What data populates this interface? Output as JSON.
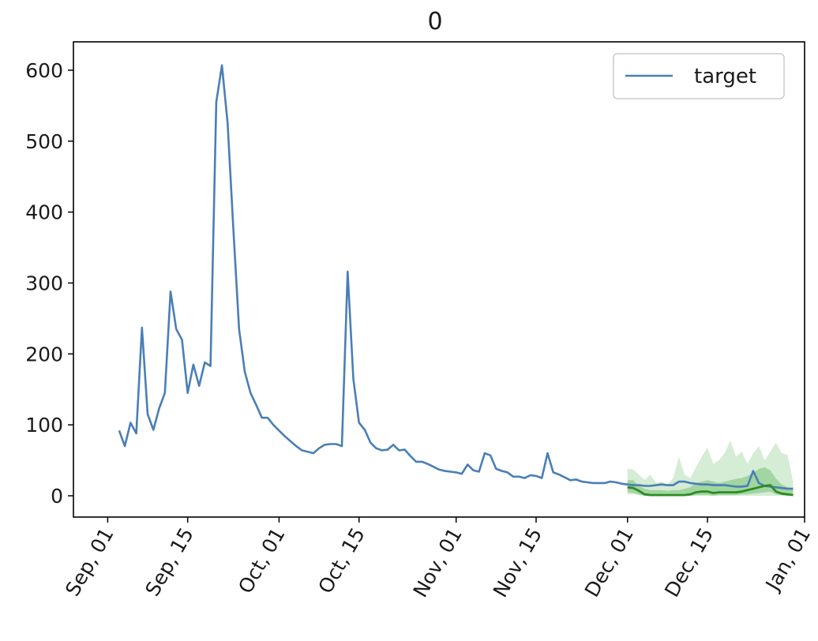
{
  "chart_data": {
    "type": "line",
    "title": "0",
    "xlabel": "",
    "ylabel": "",
    "ylim": [
      -30,
      640
    ],
    "yticks": [
      0,
      100,
      200,
      300,
      400,
      500,
      600
    ],
    "xlim": [
      "2021-08-26",
      "2022-01-01"
    ],
    "xticks": [
      {
        "date": "2021-09-01",
        "label": "Sep, 01"
      },
      {
        "date": "2021-09-15",
        "label": "Sep, 15"
      },
      {
        "date": "2021-10-01",
        "label": "Oct, 01"
      },
      {
        "date": "2021-10-15",
        "label": "Oct, 15"
      },
      {
        "date": "2021-11-01",
        "label": "Nov, 01"
      },
      {
        "date": "2021-11-15",
        "label": "Nov, 15"
      },
      {
        "date": "2021-12-01",
        "label": "Dec, 01"
      },
      {
        "date": "2021-12-15",
        "label": "Dec, 15"
      },
      {
        "date": "2022-01-01",
        "label": "Jan, 01"
      }
    ],
    "grid": false,
    "legend_position": "top-right",
    "series": [
      {
        "name": "target",
        "color": "#4a7fb5",
        "points": [
          [
            "2021-09-03",
            92
          ],
          [
            "2021-09-04",
            70
          ],
          [
            "2021-09-05",
            103
          ],
          [
            "2021-09-06",
            88
          ],
          [
            "2021-09-07",
            237
          ],
          [
            "2021-09-08",
            115
          ],
          [
            "2021-09-09",
            93
          ],
          [
            "2021-09-10",
            123
          ],
          [
            "2021-09-11",
            145
          ],
          [
            "2021-09-12",
            288
          ],
          [
            "2021-09-13",
            235
          ],
          [
            "2021-09-14",
            220
          ],
          [
            "2021-09-15",
            145
          ],
          [
            "2021-09-16",
            185
          ],
          [
            "2021-09-17",
            155
          ],
          [
            "2021-09-18",
            188
          ],
          [
            "2021-09-19",
            183
          ],
          [
            "2021-09-20",
            555
          ],
          [
            "2021-09-21",
            607
          ],
          [
            "2021-09-22",
            525
          ],
          [
            "2021-09-23",
            375
          ],
          [
            "2021-09-24",
            235
          ],
          [
            "2021-09-25",
            175
          ],
          [
            "2021-09-26",
            145
          ],
          [
            "2021-09-27",
            128
          ],
          [
            "2021-09-28",
            110
          ],
          [
            "2021-09-29",
            110
          ],
          [
            "2021-09-30",
            100
          ],
          [
            "2021-10-01",
            92
          ],
          [
            "2021-10-02",
            84
          ],
          [
            "2021-10-03",
            77
          ],
          [
            "2021-10-04",
            70
          ],
          [
            "2021-10-05",
            64
          ],
          [
            "2021-10-06",
            62
          ],
          [
            "2021-10-07",
            60
          ],
          [
            "2021-10-08",
            67
          ],
          [
            "2021-10-09",
            72
          ],
          [
            "2021-10-10",
            73
          ],
          [
            "2021-10-11",
            73
          ],
          [
            "2021-10-12",
            70
          ],
          [
            "2021-10-13",
            316
          ],
          [
            "2021-10-14",
            165
          ],
          [
            "2021-10-15",
            103
          ],
          [
            "2021-10-16",
            93
          ],
          [
            "2021-10-17",
            75
          ],
          [
            "2021-10-18",
            67
          ],
          [
            "2021-10-19",
            64
          ],
          [
            "2021-10-20",
            65
          ],
          [
            "2021-10-21",
            72
          ],
          [
            "2021-10-22",
            64
          ],
          [
            "2021-10-23",
            65
          ],
          [
            "2021-10-24",
            56
          ],
          [
            "2021-10-25",
            48
          ],
          [
            "2021-10-26",
            48
          ],
          [
            "2021-10-27",
            45
          ],
          [
            "2021-10-28",
            41
          ],
          [
            "2021-10-29",
            37
          ],
          [
            "2021-10-30",
            35
          ],
          [
            "2021-10-31",
            34
          ],
          [
            "2021-11-01",
            33
          ],
          [
            "2021-11-02",
            31
          ],
          [
            "2021-11-03",
            44
          ],
          [
            "2021-11-04",
            36
          ],
          [
            "2021-11-05",
            34
          ],
          [
            "2021-11-06",
            60
          ],
          [
            "2021-11-07",
            57
          ],
          [
            "2021-11-08",
            38
          ],
          [
            "2021-11-09",
            35
          ],
          [
            "2021-11-10",
            33
          ],
          [
            "2021-11-11",
            27
          ],
          [
            "2021-11-12",
            27
          ],
          [
            "2021-11-13",
            25
          ],
          [
            "2021-11-14",
            29
          ],
          [
            "2021-11-15",
            28
          ],
          [
            "2021-11-16",
            25
          ],
          [
            "2021-11-17",
            60
          ],
          [
            "2021-11-18",
            33
          ],
          [
            "2021-11-19",
            30
          ],
          [
            "2021-11-20",
            26
          ],
          [
            "2021-11-21",
            22
          ],
          [
            "2021-11-22",
            23
          ],
          [
            "2021-11-23",
            20
          ],
          [
            "2021-11-24",
            19
          ],
          [
            "2021-11-25",
            18
          ],
          [
            "2021-11-26",
            18
          ],
          [
            "2021-11-27",
            18
          ],
          [
            "2021-11-28",
            20
          ],
          [
            "2021-11-29",
            19
          ],
          [
            "2021-11-30",
            17
          ],
          [
            "2021-12-01",
            16
          ],
          [
            "2021-12-02",
            15
          ],
          [
            "2021-12-03",
            15
          ],
          [
            "2021-12-04",
            14
          ],
          [
            "2021-12-05",
            14
          ],
          [
            "2021-12-06",
            15
          ],
          [
            "2021-12-07",
            16
          ],
          [
            "2021-12-08",
            15
          ],
          [
            "2021-12-09",
            15
          ],
          [
            "2021-12-10",
            20
          ],
          [
            "2021-12-11",
            20
          ],
          [
            "2021-12-12",
            18
          ],
          [
            "2021-12-13",
            17
          ],
          [
            "2021-12-14",
            16
          ],
          [
            "2021-12-15",
            16
          ],
          [
            "2021-12-16",
            15
          ],
          [
            "2021-12-17",
            15
          ],
          [
            "2021-12-18",
            15
          ],
          [
            "2021-12-19",
            14
          ],
          [
            "2021-12-20",
            13
          ],
          [
            "2021-12-21",
            13
          ],
          [
            "2021-12-22",
            14
          ],
          [
            "2021-12-23",
            35
          ],
          [
            "2021-12-24",
            18
          ],
          [
            "2021-12-25",
            14
          ],
          [
            "2021-12-26",
            13
          ],
          [
            "2021-12-27",
            12
          ],
          [
            "2021-12-28",
            11
          ],
          [
            "2021-12-29",
            10
          ],
          [
            "2021-12-30",
            10
          ]
        ]
      }
    ],
    "forecast": {
      "color": "#2e8b22",
      "band_color": "#2ca02c",
      "x": [
        "2021-12-01",
        "2021-12-02",
        "2021-12-03",
        "2021-12-04",
        "2021-12-05",
        "2021-12-06",
        "2021-12-07",
        "2021-12-08",
        "2021-12-09",
        "2021-12-10",
        "2021-12-11",
        "2021-12-12",
        "2021-12-13",
        "2021-12-14",
        "2021-12-15",
        "2021-12-16",
        "2021-12-17",
        "2021-12-18",
        "2021-12-19",
        "2021-12-20",
        "2021-12-21",
        "2021-12-22",
        "2021-12-23",
        "2021-12-24",
        "2021-12-25",
        "2021-12-26",
        "2021-12-27",
        "2021-12-28",
        "2021-12-29",
        "2021-12-30"
      ],
      "median": [
        12,
        11,
        7,
        2,
        1,
        1,
        1,
        1,
        1,
        1,
        1,
        2,
        5,
        6,
        6,
        4,
        5,
        5,
        5,
        5,
        6,
        8,
        10,
        12,
        14,
        15,
        6,
        3,
        2,
        1
      ],
      "band_inner": [
        [
          5,
          22
        ],
        [
          4,
          22
        ],
        [
          2,
          14
        ],
        [
          0,
          10
        ],
        [
          0,
          8
        ],
        [
          0,
          8
        ],
        [
          0,
          8
        ],
        [
          0,
          7
        ],
        [
          0,
          8
        ],
        [
          0,
          8
        ],
        [
          0,
          10
        ],
        [
          0,
          12
        ],
        [
          1,
          18
        ],
        [
          1,
          20
        ],
        [
          1,
          22
        ],
        [
          0,
          20
        ],
        [
          1,
          18
        ],
        [
          1,
          20
        ],
        [
          1,
          22
        ],
        [
          1,
          24
        ],
        [
          2,
          25
        ],
        [
          2,
          28
        ],
        [
          3,
          32
        ],
        [
          4,
          38
        ],
        [
          5,
          40
        ],
        [
          6,
          36
        ],
        [
          2,
          24
        ],
        [
          1,
          16
        ],
        [
          0,
          12
        ],
        [
          0,
          10
        ]
      ],
      "band_outer": [
        [
          2,
          38
        ],
        [
          2,
          37
        ],
        [
          1,
          30
        ],
        [
          0,
          22
        ],
        [
          0,
          30
        ],
        [
          0,
          18
        ],
        [
          0,
          20
        ],
        [
          0,
          16
        ],
        [
          0,
          25
        ],
        [
          0,
          55
        ],
        [
          0,
          30
        ],
        [
          0,
          25
        ],
        [
          0,
          40
        ],
        [
          0,
          55
        ],
        [
          0,
          68
        ],
        [
          0,
          45
        ],
        [
          0,
          50
        ],
        [
          0,
          60
        ],
        [
          0,
          78
        ],
        [
          0,
          55
        ],
        [
          0,
          62
        ],
        [
          0,
          45
        ],
        [
          0,
          60
        ],
        [
          0,
          70
        ],
        [
          0,
          50
        ],
        [
          0,
          62
        ],
        [
          0,
          75
        ],
        [
          0,
          60
        ],
        [
          0,
          58
        ],
        [
          0,
          20
        ]
      ]
    }
  }
}
